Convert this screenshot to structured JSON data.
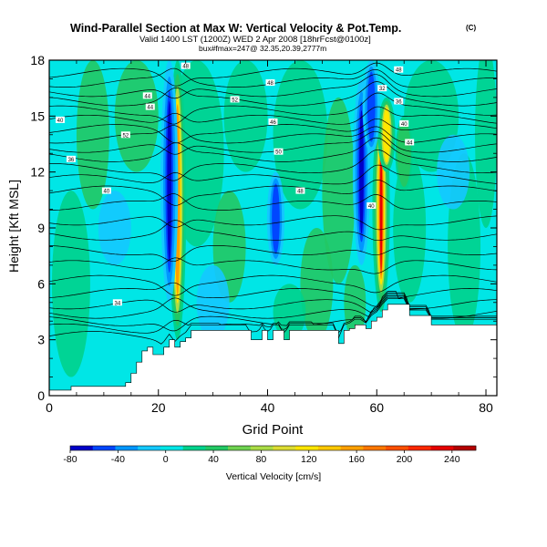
{
  "header": {
    "title": "Wind-Parallel Section at Max W: Vertical Velocity & Pot.Temp.",
    "title_suffix": "(C)",
    "subtitle": "Valid 1400 LST (1200Z) WED 2 Apr 2008 [18hrFcst@0100z]",
    "info": "bux#fmax=247@ 32.35,20.39,2777m"
  },
  "chart_data": {
    "type": "heatmap",
    "xlabel": "Grid Point",
    "ylabel": "Height [Kft MSL]",
    "xlim": [
      0,
      82
    ],
    "ylim": [
      0,
      18
    ],
    "x_ticks": [
      0,
      20,
      40,
      60,
      80
    ],
    "y_ticks": [
      0,
      3,
      6,
      9,
      12,
      15,
      18
    ],
    "colorbar": {
      "label": "Vertical Velocity [cm/s]",
      "tick_values": [
        -80,
        -40,
        0,
        40,
        80,
        120,
        160,
        200,
        240
      ],
      "bins": [
        {
          "value": -80,
          "color": "#0000c8"
        },
        {
          "value": -60,
          "color": "#0046ff"
        },
        {
          "value": -40,
          "color": "#0096ff"
        },
        {
          "value": -20,
          "color": "#14c8ff"
        },
        {
          "value": 0,
          "color": "#00e6e6"
        },
        {
          "value": 20,
          "color": "#00d28c"
        },
        {
          "value": 40,
          "color": "#22c864"
        },
        {
          "value": 60,
          "color": "#6ed250"
        },
        {
          "value": 80,
          "color": "#aadc46"
        },
        {
          "value": 100,
          "color": "#dcdc32"
        },
        {
          "value": 120,
          "color": "#ffe600"
        },
        {
          "value": 140,
          "color": "#ffc800"
        },
        {
          "value": 160,
          "color": "#ffa000"
        },
        {
          "value": 180,
          "color": "#ff7800"
        },
        {
          "value": 200,
          "color": "#ff5000"
        },
        {
          "value": 220,
          "color": "#ff2800"
        },
        {
          "value": 240,
          "color": "#e60000"
        },
        {
          "value": 260,
          "color": "#b40000"
        }
      ]
    },
    "updraft_bands": [
      {
        "center_x": 23.5,
        "bottom_km": 3.0,
        "top_km": 18,
        "peak_cm_s": 160
      },
      {
        "center_x": 60.8,
        "bottom_km": 4.5,
        "top_km": 15.5,
        "peak_cm_s": 240
      },
      {
        "center_x": 61.8,
        "bottom_km": 12,
        "top_km": 16,
        "peak_cm_s": 140
      },
      {
        "center_x": 65,
        "bottom_km": 11,
        "top_km": 15,
        "peak_cm_s": 60
      }
    ],
    "downdraft_bands": [
      {
        "center_x": 22.0,
        "bottom_km": 5,
        "top_km": 18,
        "peak_cm_s": -80
      },
      {
        "center_x": 41.5,
        "bottom_km": 7,
        "top_km": 12,
        "peak_cm_s": -60
      },
      {
        "center_x": 57.2,
        "bottom_km": 7,
        "top_km": 17,
        "peak_cm_s": -80
      },
      {
        "center_x": 59.0,
        "bottom_km": 13,
        "top_km": 18,
        "peak_cm_s": -60
      }
    ],
    "terrain_profile": {
      "x": [
        0,
        2,
        4,
        6,
        8,
        10,
        12,
        14,
        15,
        16,
        17,
        18,
        19,
        20,
        21,
        22,
        23,
        24,
        25,
        26,
        27,
        28,
        30,
        32,
        34,
        36,
        37,
        38,
        39,
        40,
        41,
        42,
        43,
        44,
        46,
        48,
        50,
        52,
        53,
        54,
        55,
        56,
        57,
        58,
        59,
        60,
        61,
        62,
        63,
        64,
        65,
        66,
        67,
        68,
        69,
        70,
        72,
        74,
        76,
        78,
        80,
        82
      ],
      "height_kft": [
        0.3,
        0.3,
        0.5,
        0.5,
        0.5,
        0.5,
        0.5,
        0.7,
        1.2,
        1.8,
        2.4,
        2.6,
        2.2,
        2.2,
        2.6,
        3.0,
        2.6,
        2.9,
        3.1,
        3.5,
        3.5,
        3.5,
        3.5,
        3.5,
        3.5,
        3.5,
        3.0,
        3.0,
        3.5,
        3.0,
        3.5,
        3.5,
        3.0,
        3.5,
        3.5,
        3.5,
        3.5,
        3.5,
        2.8,
        3.5,
        3.6,
        3.8,
        3.8,
        3.6,
        4.0,
        4.2,
        4.6,
        4.9,
        4.9,
        4.9,
        4.9,
        4.3,
        4.3,
        4.3,
        4.3,
        3.8,
        3.8,
        3.8,
        3.8,
        3.8,
        3.8,
        3.8
      ]
    },
    "theta_contours": {
      "base_heights_kft": [
        3.2,
        3.6,
        4.0,
        4.4,
        4.9,
        5.5,
        6.2,
        7.0,
        7.8,
        8.6,
        9.4,
        10.2,
        11.0,
        11.6,
        12.2,
        12.8,
        13.3,
        13.8,
        14.3,
        14.8,
        15.3,
        15.8,
        16.3,
        16.8,
        17.3
      ],
      "labels": [
        {
          "x": 4,
          "y": 12.7,
          "text": "36"
        },
        {
          "x": 2,
          "y": 14.8,
          "text": "40"
        },
        {
          "x": 10.5,
          "y": 11.0,
          "text": "40"
        },
        {
          "x": 14,
          "y": 14.0,
          "text": "52"
        },
        {
          "x": 18,
          "y": 16.1,
          "text": "44"
        },
        {
          "x": 18.5,
          "y": 15.5,
          "text": "44"
        },
        {
          "x": 25,
          "y": 17.7,
          "text": "48"
        },
        {
          "x": 34,
          "y": 15.9,
          "text": "52"
        },
        {
          "x": 40.5,
          "y": 16.8,
          "text": "48"
        },
        {
          "x": 41,
          "y": 14.7,
          "text": "46"
        },
        {
          "x": 42,
          "y": 13.1,
          "text": "50"
        },
        {
          "x": 46,
          "y": 11.0,
          "text": "48"
        },
        {
          "x": 12.5,
          "y": 5.0,
          "text": "34"
        },
        {
          "x": 59,
          "y": 10.2,
          "text": "40"
        },
        {
          "x": 61,
          "y": 16.5,
          "text": "32"
        },
        {
          "x": 64,
          "y": 17.5,
          "text": "48"
        },
        {
          "x": 64,
          "y": 15.8,
          "text": "36"
        },
        {
          "x": 65,
          "y": 14.6,
          "text": "40"
        },
        {
          "x": 66,
          "y": 13.6,
          "text": "44"
        }
      ]
    }
  }
}
